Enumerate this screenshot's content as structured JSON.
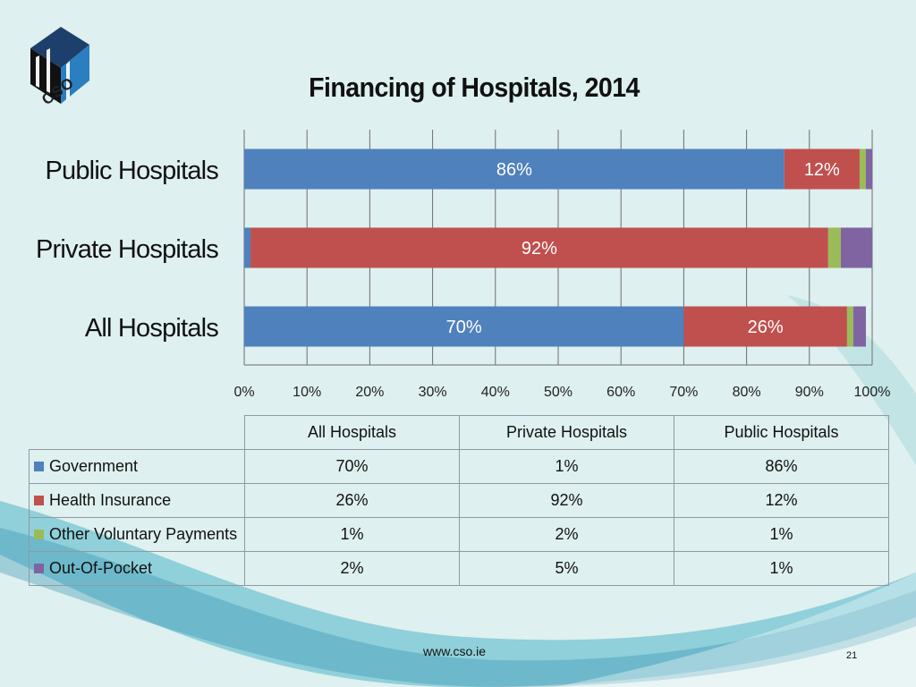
{
  "logo": {
    "icon": "cso-logo-icon",
    "text": "CSO"
  },
  "title": "Financing of Hospitals, 2014",
  "chart_data": {
    "type": "bar",
    "orientation": "horizontal",
    "stacked": true,
    "title": "Financing of Hospitals, 2014",
    "categories": [
      "Public Hospitals",
      "Private Hospitals",
      "All Hospitals"
    ],
    "series": [
      {
        "name": "Government",
        "color": "#4f81bd",
        "values": [
          86,
          1,
          70
        ],
        "labels": [
          "86%",
          "",
          "70%"
        ]
      },
      {
        "name": "Health Insurance",
        "color": "#c0504d",
        "values": [
          12,
          92,
          26
        ],
        "labels": [
          "12%",
          "92%",
          "26%"
        ]
      },
      {
        "name": "Other Voluntary Payments",
        "color": "#9bbb59",
        "values": [
          1,
          2,
          1
        ],
        "labels": [
          "",
          "",
          ""
        ]
      },
      {
        "name": "Out-Of-Pocket",
        "color": "#8064a2",
        "values": [
          1,
          5,
          2
        ],
        "labels": [
          "",
          "",
          ""
        ]
      }
    ],
    "xlim": [
      0,
      100
    ],
    "xticks": [
      "0%",
      "10%",
      "20%",
      "30%",
      "40%",
      "50%",
      "60%",
      "70%",
      "80%",
      "90%",
      "100%"
    ],
    "grid": true,
    "xlabel": "",
    "ylabel": ""
  },
  "table": {
    "headers": [
      "All Hospitals",
      "Private Hospitals",
      "Public Hospitals"
    ],
    "rows": [
      {
        "label": "Government",
        "color": "#4f81bd",
        "values": [
          "70%",
          "1%",
          "86%"
        ]
      },
      {
        "label": "Health Insurance",
        "color": "#c0504d",
        "values": [
          "26%",
          "92%",
          "12%"
        ]
      },
      {
        "label": "Other Voluntary Payments",
        "color": "#9bbb59",
        "values": [
          "1%",
          "2%",
          "1%"
        ]
      },
      {
        "label": "Out-Of-Pocket",
        "color": "#8064a2",
        "values": [
          "2%",
          "5%",
          "1%"
        ]
      }
    ]
  },
  "footer": {
    "url": "www.cso.ie",
    "page": "21"
  }
}
